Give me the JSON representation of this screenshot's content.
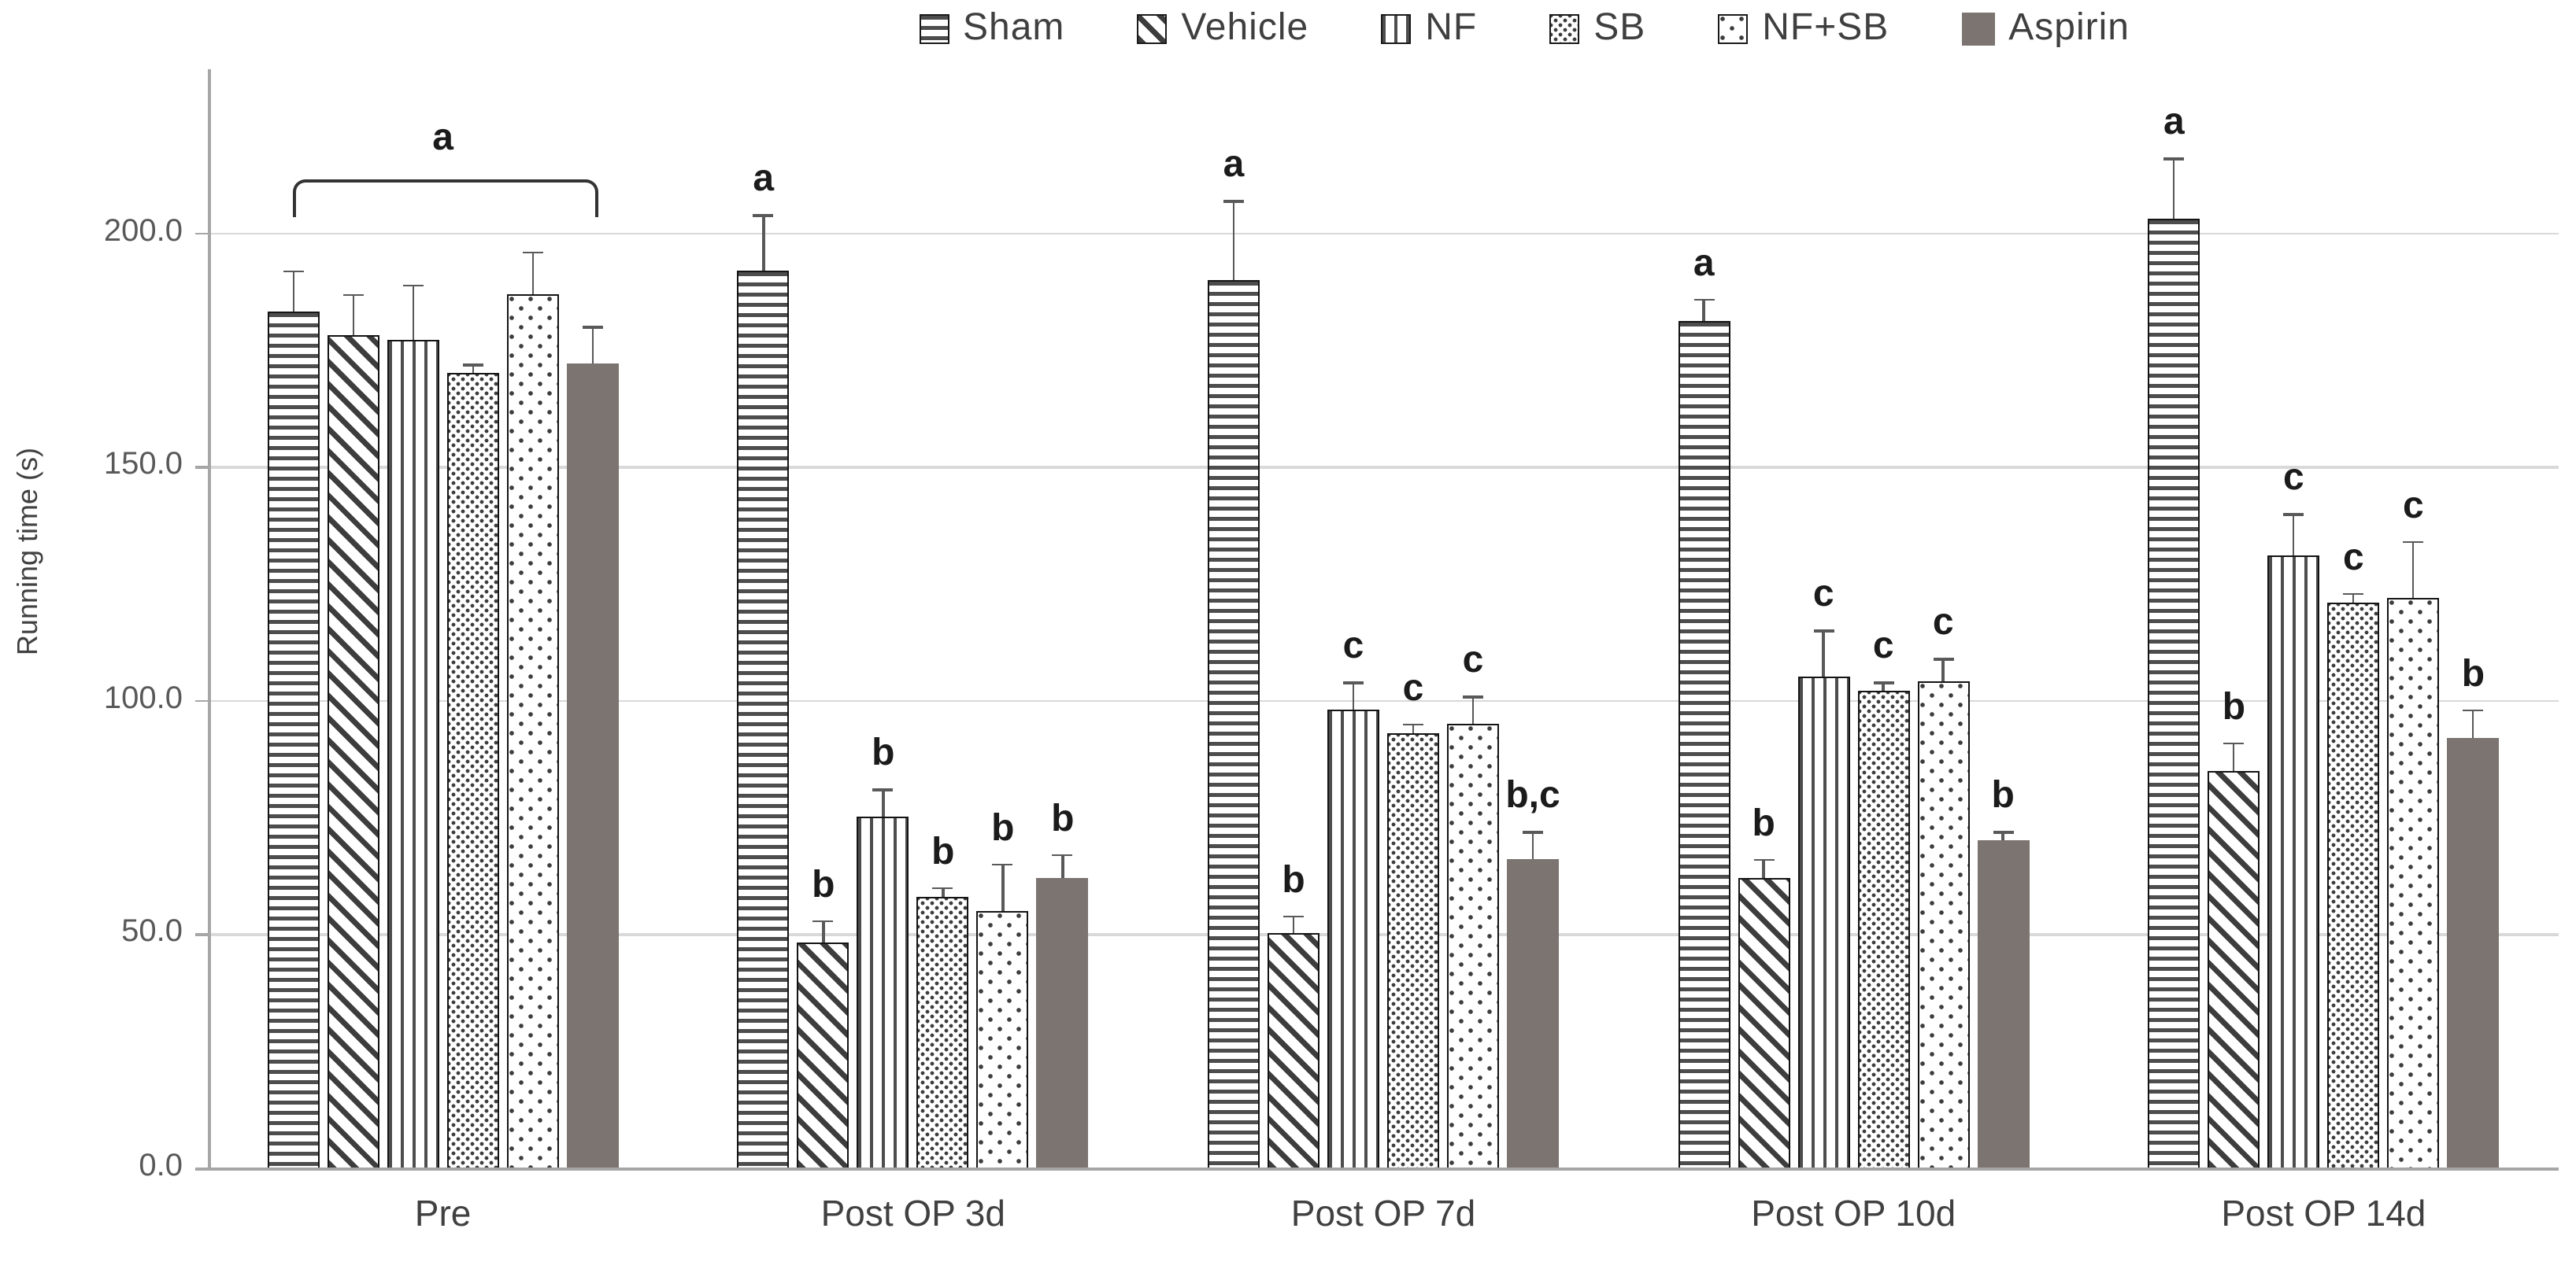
{
  "colors": {
    "aspirin_fill": "#7b7470",
    "grid": "#d9d9d9",
    "axis": "#a6a6a6",
    "text": "#404040",
    "pattern_stroke": "#3d3d3d"
  },
  "chart_data": {
    "type": "bar",
    "title": "",
    "xlabel": "",
    "ylabel": "Running time (s)",
    "ylim": [
      0,
      235
    ],
    "yticks": [
      0,
      50,
      100,
      150,
      200
    ],
    "ytick_labels": [
      "0.0",
      "50.0",
      "100.0",
      "150.0",
      "200.0"
    ],
    "grid": true,
    "legend_position": "top",
    "categories": [
      "Pre",
      "Post OP 3d",
      "Post OP 7d",
      "Post OP 10d",
      "Post OP 14d"
    ],
    "series": [
      {
        "name": "Sham",
        "pattern": "hlines",
        "values": [
          183,
          192,
          190,
          181,
          203
        ],
        "errors": [
          9,
          12,
          17,
          5,
          13
        ],
        "letters": [
          "",
          "a",
          "a",
          "a",
          "a"
        ]
      },
      {
        "name": "Vehicle",
        "pattern": "diag",
        "values": [
          178,
          48,
          50,
          62,
          85
        ],
        "errors": [
          9,
          5,
          4,
          4,
          6
        ],
        "letters": [
          "",
          "b",
          "b",
          "b",
          "b"
        ]
      },
      {
        "name": "NF",
        "pattern": "vlines",
        "values": [
          177,
          75,
          98,
          105,
          131
        ],
        "errors": [
          12,
          6,
          6,
          10,
          9
        ],
        "letters": [
          "",
          "b",
          "c",
          "c",
          "c"
        ]
      },
      {
        "name": "SB",
        "pattern": "densedots",
        "values": [
          170,
          58,
          93,
          102,
          121
        ],
        "errors": [
          2,
          2,
          2,
          2,
          2
        ],
        "letters": [
          "",
          "b",
          "c",
          "c",
          "c"
        ]
      },
      {
        "name": "NF+SB",
        "pattern": "dots",
        "values": [
          187,
          55,
          95,
          104,
          122
        ],
        "errors": [
          9,
          10,
          6,
          5,
          12
        ],
        "letters": [
          "",
          "b",
          "c",
          "c",
          "c"
        ]
      },
      {
        "name": "Aspirin",
        "pattern": "solid",
        "values": [
          172,
          62,
          66,
          70,
          92
        ],
        "errors": [
          8,
          5,
          6,
          2,
          6
        ],
        "letters": [
          "",
          "b",
          "b,c",
          "b",
          "b"
        ]
      }
    ],
    "group_bracket": {
      "category": "Pre",
      "label": "a"
    }
  }
}
